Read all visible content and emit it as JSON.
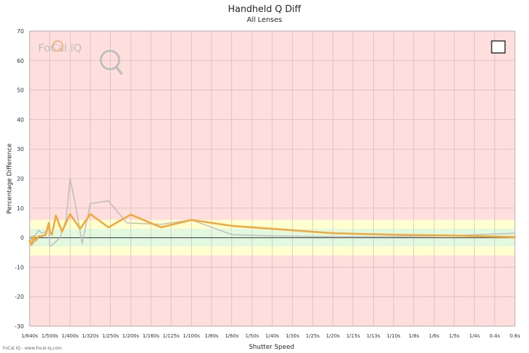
{
  "title": "Handheld Q Diff",
  "subtitle": "All Lenses",
  "credit": "FoCal IQ - www.focal-iq.com",
  "logo_text": "FoCal iQ",
  "colors": {
    "outer_band": "#ffdede",
    "mid_band": "#ffffd0",
    "inner_band": "#e2f9e0",
    "primary_line": "#f2a93b",
    "secondary_line": "#b8b8b8",
    "zero_line": "#555555"
  },
  "chart_data": {
    "type": "line",
    "title": "Handheld Q Diff",
    "subtitle": "All Lenses",
    "xlabel": "Shutter Speed",
    "ylabel": "Percentage Difference",
    "ylim": [
      -30,
      70
    ],
    "yticks": [
      -30,
      -20,
      -10,
      0,
      10,
      20,
      30,
      40,
      50,
      60,
      70
    ],
    "x_ticks": [
      "1/640s",
      "1/500s",
      "1/400s",
      "1/320s",
      "1/250s",
      "1/200s",
      "1/160s",
      "1/125s",
      "1/100s",
      "1/80s",
      "1/60s",
      "1/50s",
      "1/40s",
      "1/30s",
      "1/25s",
      "1/20s",
      "1/15s",
      "1/13s",
      "1/10s",
      "1/8s",
      "1/6s",
      "1/5s",
      "1/4s",
      "0.4s",
      "0.6s"
    ],
    "grid": true,
    "legend": "none",
    "bands": [
      {
        "from": -30,
        "to": -6,
        "color": "#ffdede"
      },
      {
        "from": -6,
        "to": -3,
        "color": "#ffffd0"
      },
      {
        "from": -3,
        "to": 3,
        "color": "#e2f9e0"
      },
      {
        "from": 3,
        "to": 6,
        "color": "#ffffd0"
      },
      {
        "from": 6,
        "to": 70,
        "color": "#ffdede"
      }
    ],
    "series": [
      {
        "color": "#b8b8b8",
        "points": [
          [
            0.0,
            -2.5
          ],
          [
            0.1,
            0.5
          ],
          [
            0.2,
            -2
          ],
          [
            0.3,
            1
          ],
          [
            0.45,
            2.5
          ],
          [
            0.6,
            1.5
          ],
          [
            0.8,
            2
          ],
          [
            0.95,
            4
          ],
          [
            1.0,
            -3
          ],
          [
            1.2,
            -2
          ],
          [
            1.5,
            0
          ],
          [
            1.8,
            6
          ],
          [
            2.0,
            20
          ],
          [
            2.3,
            10
          ],
          [
            2.6,
            -2
          ],
          [
            3.0,
            11.5
          ],
          [
            3.9,
            12.5
          ],
          [
            4.8,
            5
          ],
          [
            6.5,
            4.5
          ],
          [
            8.0,
            6
          ],
          [
            10.0,
            1
          ],
          [
            12.0,
            0.6
          ],
          [
            15.0,
            0.3
          ],
          [
            18.0,
            0.3
          ],
          [
            21.0,
            0.7
          ],
          [
            24.0,
            1.5
          ]
        ]
      },
      {
        "color": "#f2a93b",
        "points": [
          [
            0.0,
            -1
          ],
          [
            0.1,
            -2.5
          ],
          [
            0.2,
            0.5
          ],
          [
            0.3,
            -1
          ],
          [
            0.45,
            0.5
          ],
          [
            0.6,
            0.5
          ],
          [
            0.8,
            1
          ],
          [
            0.95,
            5
          ],
          [
            1.0,
            2
          ],
          [
            1.1,
            1
          ],
          [
            1.3,
            7.5
          ],
          [
            1.6,
            2
          ],
          [
            2.0,
            8
          ],
          [
            2.5,
            3
          ],
          [
            3.0,
            8
          ],
          [
            3.9,
            3.5
          ],
          [
            5.0,
            7.8
          ],
          [
            6.5,
            3.5
          ],
          [
            8.0,
            6
          ],
          [
            10.0,
            4
          ],
          [
            12.0,
            3
          ],
          [
            15.0,
            1.5
          ],
          [
            18.0,
            1
          ],
          [
            21.0,
            0.7
          ],
          [
            24.0,
            0.2
          ]
        ]
      }
    ]
  }
}
